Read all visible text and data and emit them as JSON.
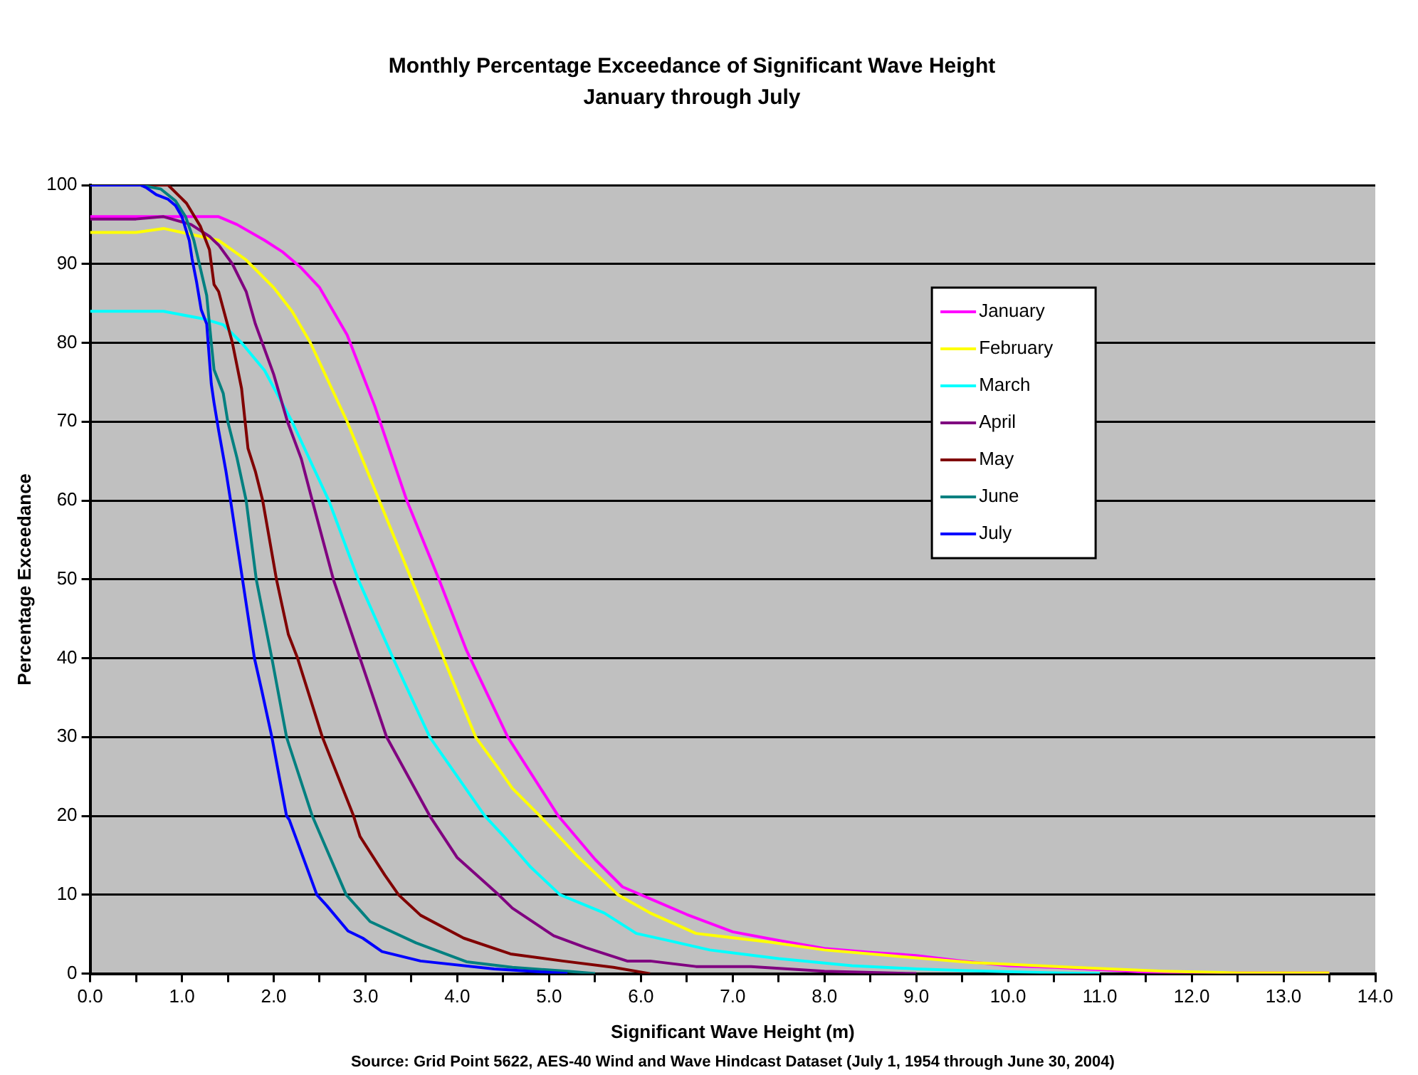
{
  "chart_data": {
    "type": "line",
    "title": "Monthly Percentage Exceedance of Significant Wave Height",
    "subtitle": "January through July",
    "xlabel": "Significant Wave Height (m)",
    "ylabel": "Percentage Exceedance",
    "annotations": [
      "Source: Grid Point 5622, AES-40 Wind and Wave Hindcast Dataset (July 1, 1954 through June 30, 2004)"
    ],
    "xlim": [
      0,
      14
    ],
    "ylim": [
      0,
      100
    ],
    "xticks": [
      {
        "value": 0,
        "label": "0.0"
      },
      {
        "value": 0.5,
        "label": null
      },
      {
        "value": 1,
        "label": "1.0"
      },
      {
        "value": 1.5,
        "label": null
      },
      {
        "value": 2,
        "label": "2.0"
      },
      {
        "value": 2.5,
        "label": null
      },
      {
        "value": 3,
        "label": "3.0"
      },
      {
        "value": 3.5,
        "label": null
      },
      {
        "value": 4,
        "label": "4.0"
      },
      {
        "value": 4.5,
        "label": null
      },
      {
        "value": 5,
        "label": "5.0"
      },
      {
        "value": 5.5,
        "label": null
      },
      {
        "value": 6,
        "label": "6.0"
      },
      {
        "value": 6.5,
        "label": null
      },
      {
        "value": 7,
        "label": "7.0"
      },
      {
        "value": 7.5,
        "label": null
      },
      {
        "value": 8,
        "label": "8.0"
      },
      {
        "value": 8.5,
        "label": null
      },
      {
        "value": 9,
        "label": "9.0"
      },
      {
        "value": 9.5,
        "label": null
      },
      {
        "value": 10,
        "label": "10.0"
      },
      {
        "value": 10.5,
        "label": null
      },
      {
        "value": 11,
        "label": "11.0"
      },
      {
        "value": 11.5,
        "label": null
      },
      {
        "value": 12,
        "label": "12.0"
      },
      {
        "value": 12.5,
        "label": null
      },
      {
        "value": 13,
        "label": "13.0"
      },
      {
        "value": 13.5,
        "label": null
      },
      {
        "value": 14,
        "label": "14.0"
      }
    ],
    "yticks": [
      0,
      10,
      20,
      30,
      40,
      50,
      60,
      70,
      80,
      90,
      100
    ],
    "grid": "y",
    "legend": "top right",
    "marker": "none",
    "line_style": "solid",
    "series": [
      {
        "name": "January",
        "color": "#ff00ff",
        "x": [
          0,
          0.5,
          1.0,
          1.4,
          1.6,
          1.9,
          2.1,
          2.3,
          2.5,
          2.8,
          3.1,
          3.45,
          3.8,
          4.1,
          4.55,
          5.1,
          5.5,
          5.8,
          6.1,
          6.5,
          7.0,
          7.5,
          8.0,
          8.5,
          9.0,
          9.5,
          10.0,
          10.5,
          11.0,
          11.5,
          12.0,
          13.5
        ],
        "values": [
          96,
          96,
          96,
          96,
          95,
          93,
          91.5,
          89.5,
          87,
          81,
          72,
          60,
          50,
          41,
          30,
          20,
          14.5,
          11,
          9.5,
          7.5,
          5.3,
          4.2,
          3.2,
          2.7,
          2.3,
          1.6,
          1.0,
          0.8,
          0.5,
          0.2,
          0.1,
          0.1
        ]
      },
      {
        "name": "February",
        "color": "#ffff00",
        "x": [
          0,
          0.5,
          0.8,
          1.0,
          1.4,
          1.7,
          2.0,
          2.2,
          2.4,
          2.8,
          3.15,
          3.5,
          3.85,
          4.2,
          4.45,
          4.6,
          4.9,
          5.3,
          5.75,
          6.1,
          6.6,
          7.4,
          8.0,
          8.6,
          9.6,
          10.7,
          11.7,
          12.5,
          13.5
        ],
        "values": [
          94,
          94,
          94.5,
          94,
          93,
          90.5,
          87,
          84,
          80,
          70,
          60,
          50,
          40,
          30,
          26,
          23.5,
          20,
          15,
          10,
          7.7,
          5.1,
          4.0,
          3.0,
          2.4,
          1.4,
          0.8,
          0.3,
          0.1,
          0.1
        ]
      },
      {
        "name": "March",
        "color": "#00ffff",
        "x": [
          0,
          0.8,
          1.25,
          1.45,
          1.65,
          1.9,
          2.2,
          2.6,
          2.92,
          3.3,
          3.7,
          4.0,
          4.3,
          4.5,
          4.8,
          5.12,
          5.6,
          5.95,
          6.3,
          6.75,
          7.5,
          8.3,
          9.0,
          9.5,
          10.5,
          11.0
        ],
        "values": [
          84,
          84,
          83,
          82.3,
          80,
          76.5,
          70,
          60,
          50,
          40,
          30,
          25,
          20,
          17.5,
          13.5,
          10,
          7.7,
          5.1,
          4.2,
          3.0,
          1.9,
          1.0,
          0.6,
          0.4,
          0.1,
          0
        ]
      },
      {
        "name": "April",
        "color": "#800080",
        "x": [
          0,
          0.5,
          0.8,
          1.1,
          1.3,
          1.4,
          1.55,
          1.7,
          1.8,
          2.0,
          2.15,
          2.3,
          2.42,
          2.65,
          2.94,
          3.23,
          3.7,
          4.0,
          4.45,
          4.6,
          5.05,
          5.4,
          5.85,
          6.1,
          6.6,
          7.2,
          8.0,
          9.0
        ],
        "values": [
          95.7,
          95.7,
          96,
          95,
          93.5,
          92.4,
          90,
          86.5,
          82.4,
          76,
          70,
          65.3,
          60,
          50,
          40,
          30,
          20,
          14.7,
          10,
          8.3,
          4.8,
          3.3,
          1.6,
          1.6,
          0.9,
          0.9,
          0.3,
          0
        ]
      },
      {
        "name": "May",
        "color": "#800000",
        "x": [
          0,
          0.85,
          1.05,
          1.2,
          1.3,
          1.35,
          1.4,
          1.55,
          1.65,
          1.72,
          1.8,
          1.88,
          2.03,
          2.16,
          2.26,
          2.53,
          2.87,
          2.94,
          3.21,
          3.36,
          3.6,
          4.07,
          4.58,
          5.15,
          5.7,
          6.1
        ],
        "values": [
          100,
          100,
          97.7,
          94.8,
          91.8,
          87.4,
          86.5,
          80,
          74.2,
          66.6,
          63.7,
          60,
          50,
          43,
          40,
          30,
          20,
          17.4,
          12.5,
          10,
          7.4,
          4.5,
          2.5,
          1.6,
          0.8,
          0
        ]
      },
      {
        "name": "June",
        "color": "#008080",
        "x": [
          0,
          0.55,
          0.77,
          0.93,
          1.04,
          1.13,
          1.19,
          1.27,
          1.32,
          1.35,
          1.45,
          1.5,
          1.6,
          1.7,
          1.81,
          1.98,
          2.14,
          2.17,
          2.42,
          2.79,
          3.05,
          3.55,
          4.1,
          4.6,
          5.2,
          5.5
        ],
        "values": [
          100,
          100,
          99.5,
          98,
          96,
          93,
          90,
          86,
          80,
          76.6,
          73.6,
          70,
          65.4,
          60,
          50,
          40,
          30,
          28.9,
          20,
          10,
          6.6,
          3.9,
          1.5,
          0.8,
          0.3,
          0
        ]
      },
      {
        "name": "July",
        "color": "#0000ff",
        "x": [
          0,
          0.55,
          0.61,
          0.72,
          0.85,
          0.93,
          1.0,
          1.08,
          1.11,
          1.16,
          1.21,
          1.27,
          1.32,
          1.35,
          1.4,
          1.48,
          1.53,
          1.66,
          1.79,
          1.87,
          1.98,
          2.14,
          2.17,
          2.47,
          2.58,
          2.81,
          2.97,
          3.18,
          3.6,
          4.4,
          5.2
        ],
        "values": [
          100,
          100,
          99.7,
          98.8,
          98.2,
          97.4,
          96,
          93,
          90.7,
          87.7,
          84.2,
          82.4,
          74.8,
          72.4,
          68.9,
          63.7,
          60,
          50,
          40,
          35.9,
          30,
          20,
          19.5,
          10,
          8.6,
          5.4,
          4.5,
          2.8,
          1.6,
          0.6,
          0
        ]
      }
    ]
  }
}
